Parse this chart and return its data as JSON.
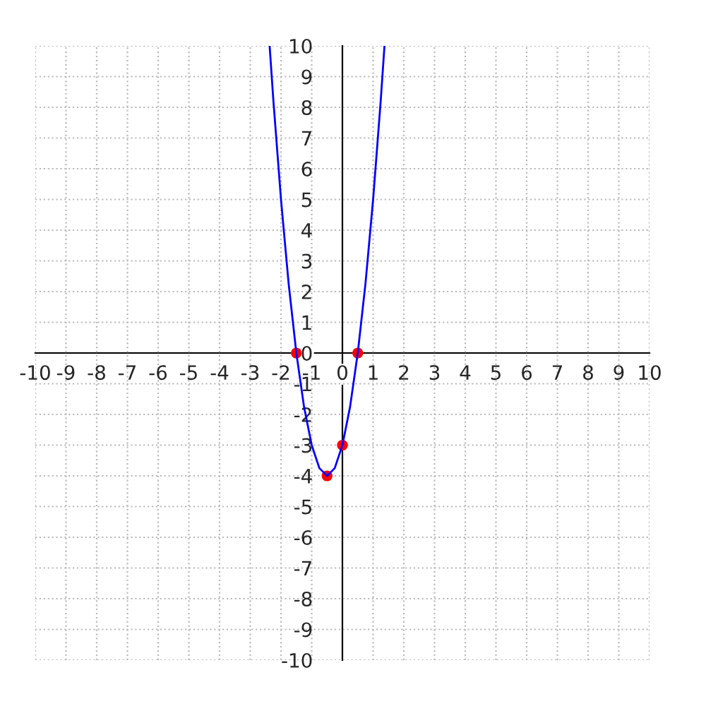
{
  "chart_data": {
    "type": "line",
    "xlim": [
      -10,
      10
    ],
    "ylim": [
      -10,
      10
    ],
    "xticks": [
      -10,
      -9,
      -8,
      -7,
      -6,
      -5,
      -4,
      -3,
      -2,
      -1,
      0,
      1,
      2,
      3,
      4,
      5,
      6,
      7,
      8,
      9,
      10
    ],
    "yticks": [
      -10,
      -9,
      -8,
      -7,
      -6,
      -5,
      -4,
      -3,
      -2,
      -1,
      0,
      1,
      2,
      3,
      4,
      5,
      6,
      7,
      8,
      9,
      10
    ],
    "grid": true,
    "series": [
      {
        "type": "line",
        "color": "#0000ff",
        "marker": "none",
        "x": [
          -2.37,
          -2.25,
          -2,
          -1.75,
          -1.5,
          -1.25,
          -1,
          -0.75,
          -0.5,
          -0.25,
          0,
          0.25,
          0.5,
          0.75,
          1,
          1.25,
          1.37
        ],
        "values": [
          10,
          8.25,
          5,
          2.25,
          0,
          -1.75,
          -3,
          -3.75,
          -4,
          -3.75,
          -3,
          -1.75,
          0,
          2.25,
          5,
          8.25,
          10
        ]
      },
      {
        "type": "scatter",
        "color": "#ff0000",
        "marker": "circle",
        "x": [
          -1.5,
          -0.5,
          0,
          0.5
        ],
        "values": [
          0,
          -4,
          -3,
          0
        ]
      }
    ]
  }
}
